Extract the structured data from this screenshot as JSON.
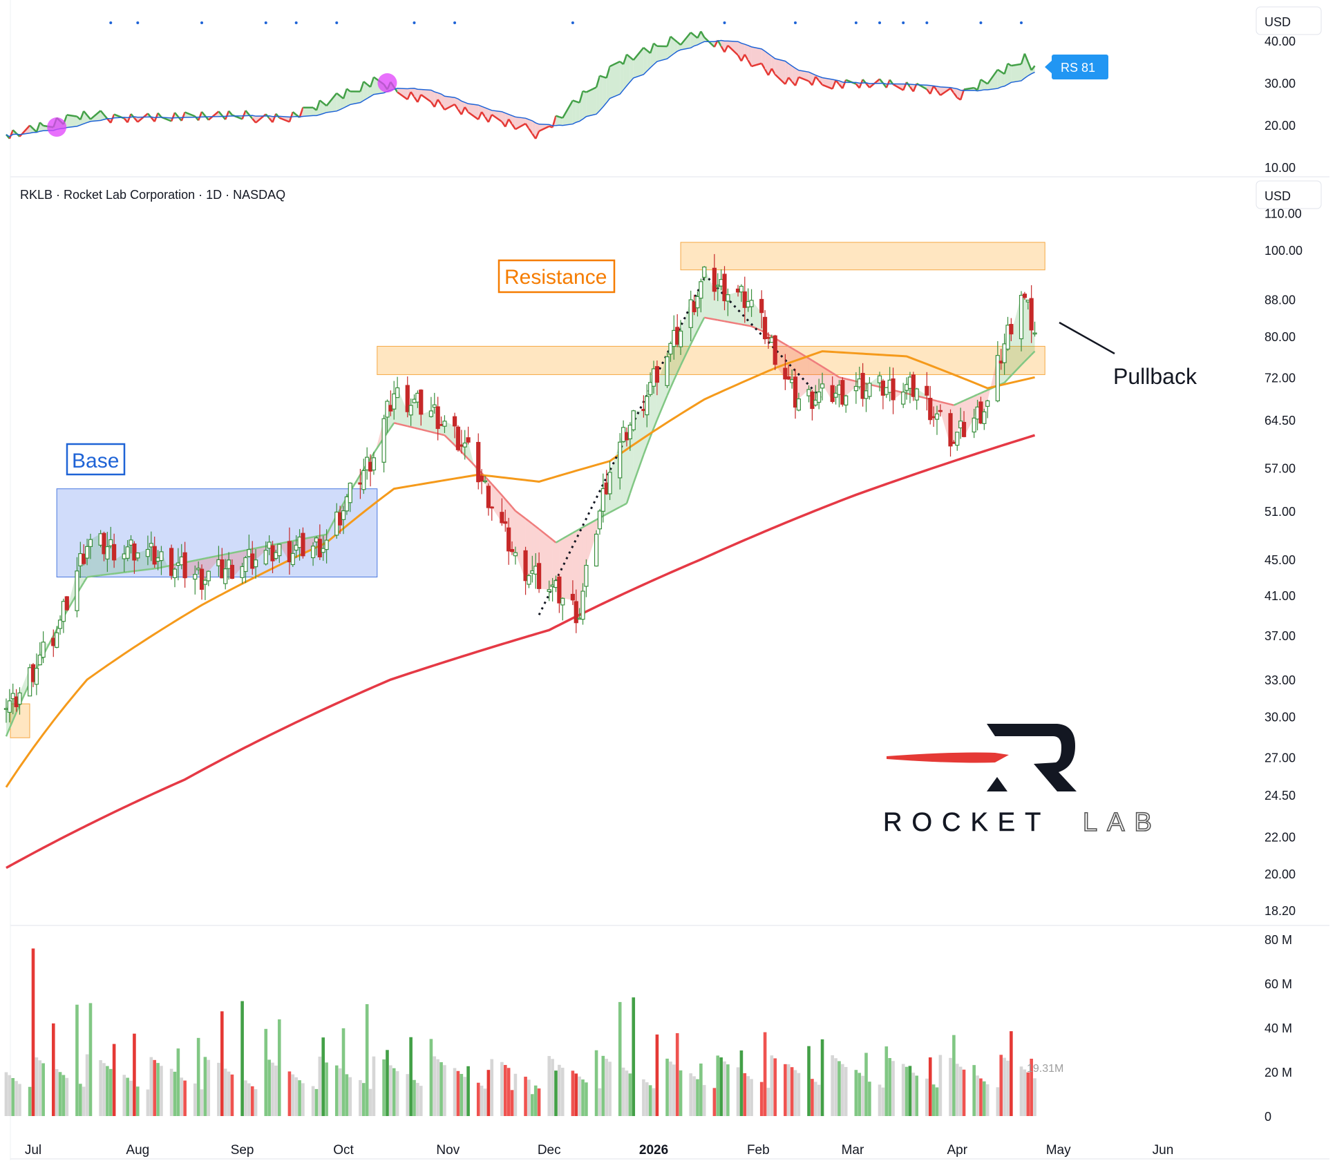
{
  "header": {
    "symbol_line": "RKLB · Rocket Lab Corporation · 1D · NASDAQ",
    "currency_top": "USD",
    "currency_main": "USD"
  },
  "rs_panel": {
    "ticks": [
      "40.00",
      "30.00",
      "20.00",
      "10.00"
    ],
    "badge": "RS 81",
    "badge_color": "#2196f3",
    "line_up_color": "#43a047",
    "line_down_color": "#e53935",
    "avg_color": "#1e63d6",
    "fill_up": "#c8e6c9",
    "fill_down": "#f5c2c5"
  },
  "price_panel": {
    "ticks": [
      "110.00",
      "100.00",
      "88.00",
      "80.00",
      "72.00",
      "64.50",
      "57.00",
      "51.00",
      "45.00",
      "41.00",
      "37.00",
      "33.00",
      "30.00",
      "27.00",
      "24.50",
      "22.00",
      "20.00",
      "18.20"
    ],
    "up_color": "#388e3c",
    "down_color": "#c62828"
  },
  "volume_panel": {
    "ticks": [
      "80 M",
      "60 M",
      "40 M",
      "20 M",
      "0"
    ],
    "last_label": "19.31M"
  },
  "x_axis": {
    "labels": [
      "Jul",
      "Aug",
      "Sep",
      "Oct",
      "Nov",
      "Dec",
      "2026",
      "Feb",
      "Mar",
      "Apr",
      "May",
      "Jun"
    ]
  },
  "annotations": {
    "base": "Base",
    "resistance": "Resistance",
    "pullback": "Pullback",
    "base_color": "#1e63d6",
    "resistance_color": "#f57c00"
  },
  "logo": {
    "word1": "ROCKET",
    "word2": "LAB"
  },
  "chart_data": {
    "type": "candlestick",
    "scale": "log",
    "ylim": [
      18.2,
      110
    ],
    "x_range": [
      "2025-06-23",
      "2026-06-25"
    ],
    "series": [
      {
        "name": "RKLB",
        "kind": "candles",
        "dates": [
          "2025-06-25",
          "2025-07-09",
          "2025-07-17",
          "2025-08-01",
          "2025-08-20",
          "2025-09-02",
          "2025-09-26",
          "2025-10-10",
          "2025-10-16",
          "2025-10-28",
          "2025-11-06",
          "2025-11-21",
          "2025-12-10",
          "2025-12-19",
          "2026-01-09",
          "2026-01-16",
          "2026-01-29",
          "2026-02-12",
          "2026-03-02",
          "2026-03-20",
          "2026-03-31",
          "2026-04-10",
          "2026-04-20",
          "2026-04-24"
        ],
        "close": [
          31,
          38,
          47,
          46,
          43,
          45,
          47,
          59,
          69,
          66,
          60,
          45,
          39,
          57,
          81,
          93,
          88,
          68,
          70,
          70,
          61,
          67,
          90,
          81
        ]
      },
      {
        "name": "EMA 10",
        "kind": "line",
        "dates": [
          "2025-06-23",
          "2025-07-17",
          "2025-08-07",
          "2025-09-26",
          "2025-10-16",
          "2025-10-31",
          "2025-11-21",
          "2025-12-03",
          "2025-12-24",
          "2026-01-16",
          "2026-01-31",
          "2026-02-25",
          "2026-03-31",
          "2026-04-15",
          "2026-04-24"
        ],
        "values": [
          28.5,
          43,
          44,
          48,
          64,
          62,
          51,
          47,
          52,
          84,
          82,
          72,
          67,
          71,
          77
        ]
      },
      {
        "name": "EMA 21",
        "kind": "line",
        "dates": [
          "2025-06-23",
          "2025-07-17",
          "2025-08-20",
          "2025-09-26",
          "2025-10-16",
          "2025-11-10",
          "2025-11-28",
          "2025-12-19",
          "2026-01-16",
          "2026-02-07",
          "2026-02-20",
          "2026-03-17",
          "2026-04-10",
          "2026-04-24"
        ],
        "values": [
          25,
          33,
          40,
          47,
          54,
          56,
          55,
          58,
          68,
          74,
          77,
          76,
          70,
          72
        ]
      },
      {
        "name": "SMA 200",
        "kind": "line",
        "dates": [
          "2025-06-23",
          "2025-08-15",
          "2025-10-15",
          "2025-12-01",
          "2026-01-15",
          "2026-03-01",
          "2026-04-24"
        ],
        "values": [
          20.3,
          25.5,
          33,
          37.5,
          45,
          53,
          62
        ]
      }
    ],
    "rs_line": {
      "dates": [
        "2025-06-25",
        "2025-07-15",
        "2025-09-15",
        "2025-10-10",
        "2025-11-15",
        "2025-11-28",
        "2025-12-22",
        "2026-01-14",
        "2026-02-10",
        "2026-03-10",
        "2026-04-01",
        "2026-04-21",
        "2026-04-24"
      ],
      "values": [
        18,
        22,
        22,
        30,
        21,
        18,
        35,
        42,
        30,
        30,
        27,
        36,
        33
      ]
    },
    "volume": {
      "dates": [
        "2025-06-27",
        "2025-07-24",
        "2025-08-29",
        "2025-10-10",
        "2025-11-28",
        "2025-12-22",
        "2026-01-16",
        "2026-03-20",
        "2026-04-20",
        "2026-04-24"
      ],
      "values": [
        77,
        45,
        48,
        46,
        11,
        53,
        36,
        33,
        41,
        19.31
      ]
    },
    "zones": [
      {
        "label": "Resistance",
        "from": 72.5,
        "to": 78
      },
      {
        "label": "",
        "from": 95,
        "to": 102
      },
      {
        "label": "Base",
        "from": 43,
        "to": 54
      }
    ]
  }
}
